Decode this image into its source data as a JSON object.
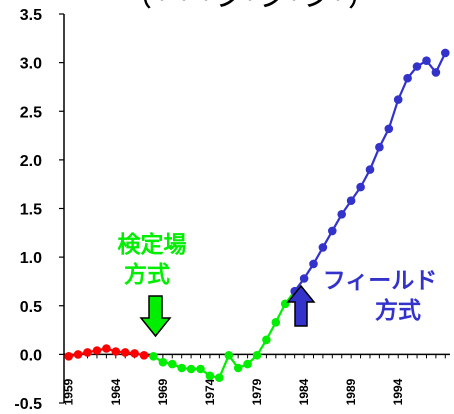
{
  "chart_data": {
    "type": "line",
    "title": "（・・・シ・ジ・ン・）",
    "xlabel": "",
    "ylabel": "",
    "ylim": [
      -0.5,
      3.5
    ],
    "y_ticks": [
      "3.5",
      "3.0",
      "2.5",
      "2.0",
      "1.5",
      "1.0",
      "0.5",
      "0.0",
      "-0.5"
    ],
    "y_tick_values": [
      3.5,
      3.0,
      2.5,
      2.0,
      1.5,
      1.0,
      0.5,
      0.0,
      -0.5
    ],
    "x_ticks": [
      "1959",
      "1964",
      "1969",
      "1974",
      "1979",
      "1984",
      "1989",
      "1994"
    ],
    "x_tick_values": [
      1959,
      1964,
      1969,
      1974,
      1979,
      1984,
      1989,
      1994
    ],
    "xlim": [
      1958.5,
      1999.5
    ],
    "grid": false,
    "series": [
      {
        "color": "#ff0000",
        "x": [
          1959,
          1960,
          1961,
          1962,
          1963,
          1964,
          1965,
          1966,
          1967
        ],
        "y": [
          -0.02,
          0.0,
          0.02,
          0.04,
          0.06,
          0.03,
          0.02,
          0.01,
          -0.01
        ]
      },
      {
        "color": "#00ee00",
        "x": [
          1968,
          1969,
          1970,
          1971,
          1972,
          1973,
          1974,
          1975,
          1976,
          1977,
          1978,
          1979,
          1980,
          1981,
          1982
        ],
        "y": [
          -0.02,
          -0.08,
          -0.1,
          -0.14,
          -0.15,
          -0.15,
          -0.22,
          -0.24,
          -0.01,
          -0.14,
          -0.1,
          -0.01,
          0.15,
          0.33,
          0.52
        ]
      },
      {
        "color": "#3333cc",
        "x": [
          1983,
          1984,
          1985,
          1986,
          1987,
          1988,
          1989,
          1990,
          1991,
          1992,
          1993,
          1994,
          1995,
          1996,
          1997,
          1998,
          1999
        ],
        "y": [
          0.65,
          0.78,
          0.93,
          1.1,
          1.27,
          1.44,
          1.58,
          1.72,
          1.9,
          2.13,
          2.32,
          2.62,
          2.84,
          2.96,
          3.02,
          2.9,
          3.1
        ]
      }
    ],
    "annotations": [
      {
        "text": "検定場",
        "color": "#00ee00"
      },
      {
        "text": "方式",
        "color": "#00ee00"
      },
      {
        "text": "フィールド",
        "color": "#3333cc"
      },
      {
        "text": "方式",
        "color": "#3333cc"
      }
    ]
  }
}
